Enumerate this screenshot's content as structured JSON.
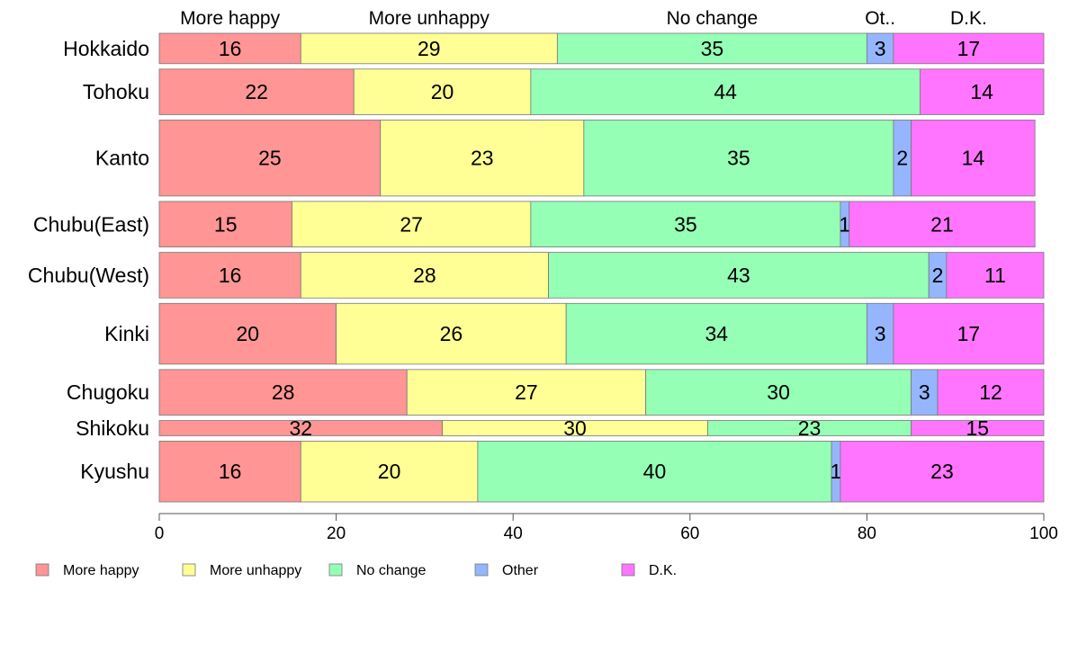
{
  "chart_data": {
    "type": "bar",
    "orientation": "horizontal",
    "stacked": true,
    "categories": [
      "Hokkaido",
      "Tohoku",
      "Kanto",
      "Chubu(East)",
      "Chubu(West)",
      "Kinki",
      "Chugoku",
      "Shikoku",
      "Kyushu"
    ],
    "bar_weights": [
      2,
      3,
      5,
      3,
      3,
      4,
      3,
      1,
      4
    ],
    "series": [
      {
        "name": "More happy",
        "values": [
          16,
          22,
          25,
          15,
          16,
          20,
          28,
          32,
          16
        ],
        "color": "#ff9595"
      },
      {
        "name": "More unhappy",
        "values": [
          29,
          20,
          23,
          27,
          28,
          26,
          27,
          30,
          20
        ],
        "color": "#ffff95"
      },
      {
        "name": "No change",
        "values": [
          35,
          44,
          35,
          35,
          43,
          34,
          30,
          23,
          40
        ],
        "color": "#95ffb5"
      },
      {
        "name": "Other",
        "values": [
          3,
          0,
          2,
          1,
          2,
          3,
          3,
          0,
          1
        ],
        "color": "#95b5ff"
      },
      {
        "name": "D.K.",
        "values": [
          17,
          14,
          14,
          21,
          11,
          17,
          12,
          15,
          23
        ],
        "color": "#ff75ff"
      }
    ],
    "top_labels": [
      "More happy",
      "More unhappy",
      "No change",
      "Ot..",
      "D.K."
    ],
    "xlim": [
      0,
      100
    ],
    "xticks": [
      0,
      20,
      40,
      60,
      80,
      100
    ],
    "grid": false,
    "legend_position": "bottom"
  }
}
